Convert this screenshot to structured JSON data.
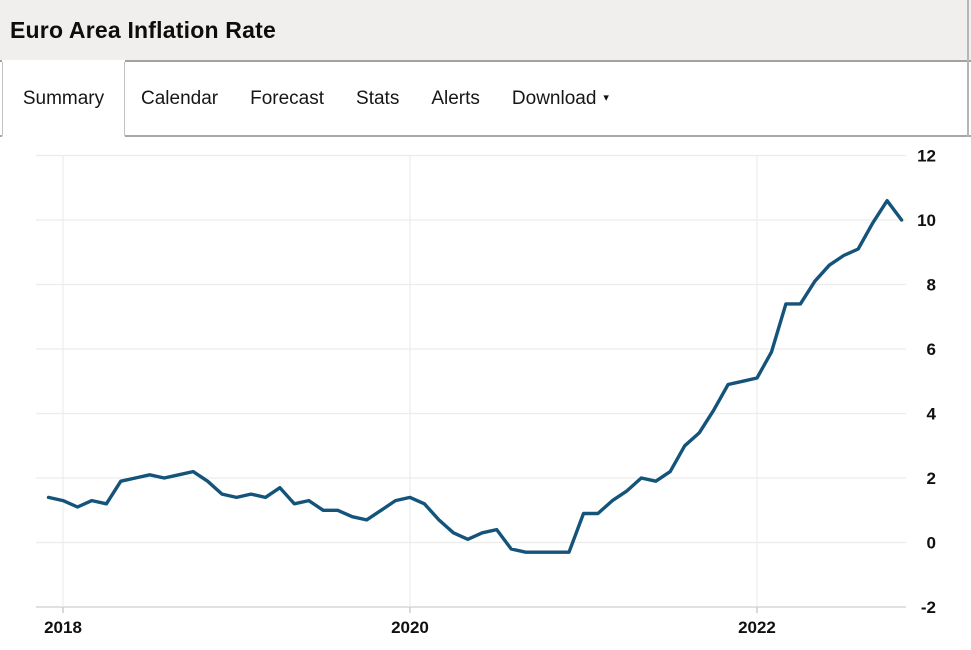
{
  "header": {
    "title": "Euro Area Inflation Rate"
  },
  "tabs": [
    {
      "label": "Summary",
      "active": true
    },
    {
      "label": "Calendar",
      "active": false
    },
    {
      "label": "Forecast",
      "active": false
    },
    {
      "label": "Stats",
      "active": false
    },
    {
      "label": "Alerts",
      "active": false
    },
    {
      "label": "Download",
      "active": false,
      "has_dropdown": true
    }
  ],
  "icons": {
    "download_caret": "▾"
  },
  "colors": {
    "line": "#14537a",
    "header_bg": "#f0efed",
    "grid": "#ececec",
    "axis": "#cfcfcf",
    "tick": "#c9c9c9",
    "label_text": "#101010"
  },
  "chart_data": {
    "type": "line",
    "title": "Euro Area Inflation Rate",
    "unit": "percent",
    "grid": true,
    "legend": "none",
    "ylim": [
      -2,
      12
    ],
    "y_ticks": [
      -2,
      0,
      2,
      4,
      6,
      8,
      10,
      12
    ],
    "x_ticks": [
      "2018",
      "2020",
      "2022"
    ],
    "x": [
      "2017-12",
      "2018-01",
      "2018-02",
      "2018-03",
      "2018-04",
      "2018-05",
      "2018-06",
      "2018-07",
      "2018-08",
      "2018-09",
      "2018-10",
      "2018-11",
      "2018-12",
      "2019-01",
      "2019-02",
      "2019-03",
      "2019-04",
      "2019-05",
      "2019-06",
      "2019-07",
      "2019-08",
      "2019-09",
      "2019-10",
      "2019-11",
      "2019-12",
      "2020-01",
      "2020-02",
      "2020-03",
      "2020-04",
      "2020-05",
      "2020-06",
      "2020-07",
      "2020-08",
      "2020-09",
      "2020-10",
      "2020-11",
      "2020-12",
      "2021-01",
      "2021-02",
      "2021-03",
      "2021-04",
      "2021-05",
      "2021-06",
      "2021-07",
      "2021-08",
      "2021-09",
      "2021-10",
      "2021-11",
      "2021-12",
      "2022-01",
      "2022-02",
      "2022-03",
      "2022-04",
      "2022-05",
      "2022-06",
      "2022-07",
      "2022-08",
      "2022-09",
      "2022-10",
      "2022-11"
    ],
    "values": [
      1.4,
      1.3,
      1.1,
      1.3,
      1.2,
      1.9,
      2.0,
      2.1,
      2.0,
      2.1,
      2.2,
      1.9,
      1.5,
      1.4,
      1.5,
      1.4,
      1.7,
      1.2,
      1.3,
      1.0,
      1.0,
      0.8,
      0.7,
      1.0,
      1.3,
      1.4,
      1.2,
      0.7,
      0.3,
      0.1,
      0.3,
      0.4,
      -0.2,
      -0.3,
      -0.3,
      -0.3,
      -0.3,
      0.9,
      0.9,
      1.3,
      1.6,
      2.0,
      1.9,
      2.2,
      3.0,
      3.4,
      4.1,
      4.9,
      5.0,
      5.1,
      5.9,
      7.4,
      7.4,
      8.1,
      8.6,
      8.9,
      9.1,
      9.9,
      10.6,
      10.0
    ]
  }
}
